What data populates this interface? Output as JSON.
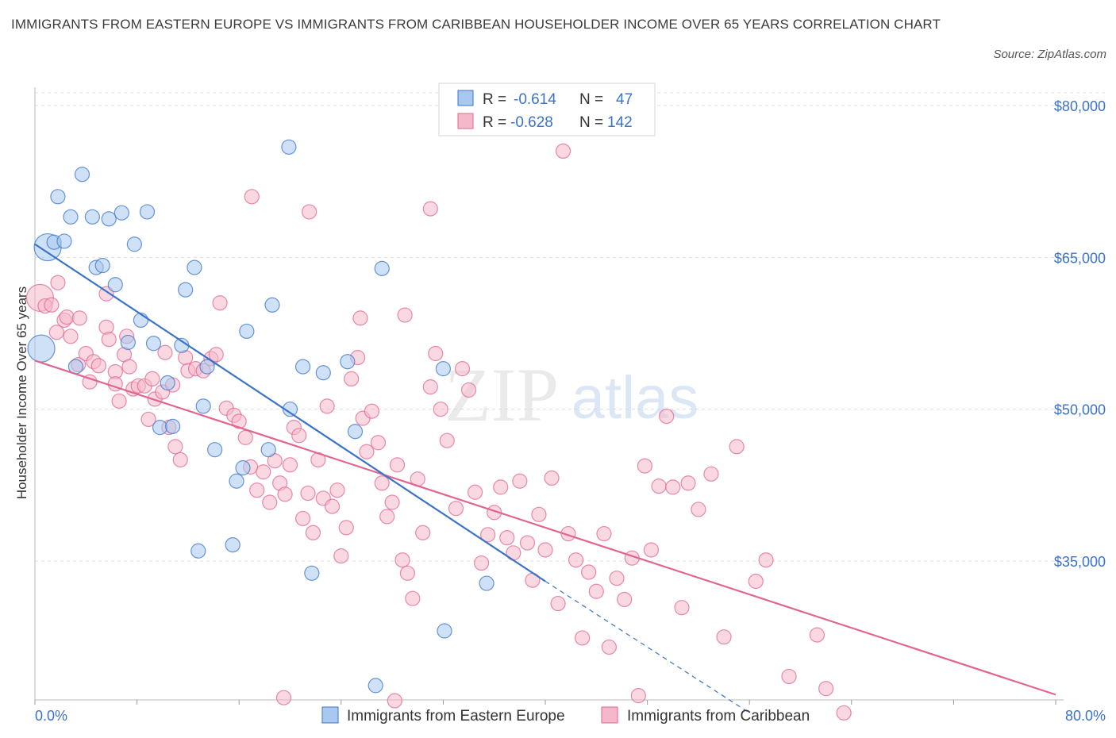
{
  "title": "IMMIGRANTS FROM EASTERN EUROPE VS IMMIGRANTS FROM CARIBBEAN HOUSEHOLDER INCOME OVER 65 YEARS CORRELATION CHART",
  "source": "Source: ZipAtlas.com",
  "watermark": {
    "zip": "ZIP",
    "atlas": "atlas"
  },
  "legend": {
    "r_label": "R =",
    "n_label": "N =",
    "entries": [
      {
        "r": "-0.614",
        "n": "47"
      },
      {
        "r": "-0.628",
        "n": "142"
      }
    ]
  },
  "bottom_legend": [
    "Immigrants from Eastern Europe",
    "Immigrants from Caribbean"
  ],
  "colors": {
    "blue": "#3b73c8",
    "blue_fill": "#a8c8ef",
    "pink": "#e06690",
    "pink_fill": "#f5b8cb"
  },
  "chart_data": {
    "type": "scatter",
    "xlabel": "",
    "ylabel": "Householder Income Over 65 years",
    "xlim": [
      0,
      80
    ],
    "ylim": [
      20000,
      83000
    ],
    "x_tick_labels": [
      "0.0%",
      "80.0%"
    ],
    "y_ticks": [
      35000,
      50000,
      65000,
      80000
    ],
    "y_tick_labels": [
      "$35,000",
      "$50,000",
      "$65,000",
      "$80,000"
    ],
    "grid": true,
    "series": [
      {
        "name": "Immigrants from Eastern Europe",
        "color": "#3b73c8",
        "trend": {
          "x": [
            0,
            40
          ],
          "y": [
            66300,
            33000
          ]
        },
        "trend_dashed": {
          "x": [
            40,
            56
          ],
          "y": [
            33000,
            20000
          ]
        },
        "points": [
          {
            "x": 0.5,
            "y": 56000,
            "s": 2
          },
          {
            "x": 1.0,
            "y": 66000,
            "s": 2
          },
          {
            "x": 1.5,
            "y": 66500,
            "s": 1
          },
          {
            "x": 2.3,
            "y": 66600,
            "s": 1
          },
          {
            "x": 1.8,
            "y": 71000,
            "s": 1
          },
          {
            "x": 2.8,
            "y": 69000,
            "s": 1
          },
          {
            "x": 3.7,
            "y": 73200,
            "s": 1
          },
          {
            "x": 4.5,
            "y": 69000,
            "s": 1
          },
          {
            "x": 5.8,
            "y": 68800,
            "s": 1
          },
          {
            "x": 6.8,
            "y": 69400,
            "s": 1
          },
          {
            "x": 8.8,
            "y": 69500,
            "s": 1
          },
          {
            "x": 7.8,
            "y": 66300,
            "s": 1
          },
          {
            "x": 4.8,
            "y": 64000,
            "s": 1
          },
          {
            "x": 5.3,
            "y": 64200,
            "s": 1
          },
          {
            "x": 6.3,
            "y": 62300,
            "s": 1
          },
          {
            "x": 8.3,
            "y": 58800,
            "s": 1
          },
          {
            "x": 7.3,
            "y": 56600,
            "s": 1
          },
          {
            "x": 9.3,
            "y": 56500,
            "s": 1
          },
          {
            "x": 11.5,
            "y": 56300,
            "s": 1
          },
          {
            "x": 11.8,
            "y": 61800,
            "s": 1
          },
          {
            "x": 12.5,
            "y": 64000,
            "s": 1
          },
          {
            "x": 3.2,
            "y": 54200,
            "s": 1
          },
          {
            "x": 10.4,
            "y": 52600,
            "s": 1
          },
          {
            "x": 13.5,
            "y": 54200,
            "s": 1
          },
          {
            "x": 16.6,
            "y": 57700,
            "s": 1
          },
          {
            "x": 18.6,
            "y": 60300,
            "s": 1
          },
          {
            "x": 19.9,
            "y": 75900,
            "s": 1
          },
          {
            "x": 21.0,
            "y": 54200,
            "s": 1
          },
          {
            "x": 22.6,
            "y": 53600,
            "s": 1
          },
          {
            "x": 24.5,
            "y": 54700,
            "s": 1
          },
          {
            "x": 27.2,
            "y": 63900,
            "s": 1
          },
          {
            "x": 32.0,
            "y": 54000,
            "s": 1
          },
          {
            "x": 13.2,
            "y": 50300,
            "s": 1
          },
          {
            "x": 9.8,
            "y": 48200,
            "s": 1
          },
          {
            "x": 10.8,
            "y": 48300,
            "s": 1
          },
          {
            "x": 14.1,
            "y": 46000,
            "s": 1
          },
          {
            "x": 20.0,
            "y": 50000,
            "s": 1
          },
          {
            "x": 25.1,
            "y": 47800,
            "s": 1
          },
          {
            "x": 18.3,
            "y": 46000,
            "s": 1
          },
          {
            "x": 16.3,
            "y": 44200,
            "s": 1
          },
          {
            "x": 15.8,
            "y": 42900,
            "s": 1
          },
          {
            "x": 12.8,
            "y": 36000,
            "s": 1
          },
          {
            "x": 15.5,
            "y": 36600,
            "s": 1
          },
          {
            "x": 21.7,
            "y": 33800,
            "s": 1
          },
          {
            "x": 35.4,
            "y": 32800,
            "s": 1
          },
          {
            "x": 32.1,
            "y": 28100,
            "s": 1
          },
          {
            "x": 26.7,
            "y": 22700,
            "s": 1
          }
        ]
      },
      {
        "name": "Immigrants from Caribbean",
        "color": "#e06690",
        "trend": {
          "x": [
            0,
            80
          ],
          "y": [
            54800,
            21800
          ]
        },
        "points": [
          {
            "x": 0.4,
            "y": 61000,
            "s": 2
          },
          {
            "x": 0.8,
            "y": 60200,
            "s": 1
          },
          {
            "x": 1.3,
            "y": 60300,
            "s": 1
          },
          {
            "x": 1.7,
            "y": 57600,
            "s": 1
          },
          {
            "x": 1.8,
            "y": 62500,
            "s": 1
          },
          {
            "x": 2.3,
            "y": 58800,
            "s": 1
          },
          {
            "x": 2.5,
            "y": 59100,
            "s": 1
          },
          {
            "x": 2.8,
            "y": 57200,
            "s": 1
          },
          {
            "x": 3.5,
            "y": 59000,
            "s": 1
          },
          {
            "x": 3.4,
            "y": 54400,
            "s": 1
          },
          {
            "x": 4.0,
            "y": 55500,
            "s": 1
          },
          {
            "x": 4.3,
            "y": 52700,
            "s": 1
          },
          {
            "x": 4.6,
            "y": 54700,
            "s": 1
          },
          {
            "x": 5.0,
            "y": 54300,
            "s": 1
          },
          {
            "x": 5.6,
            "y": 61400,
            "s": 1
          },
          {
            "x": 5.6,
            "y": 58100,
            "s": 1
          },
          {
            "x": 5.8,
            "y": 56900,
            "s": 1
          },
          {
            "x": 6.3,
            "y": 53700,
            "s": 1
          },
          {
            "x": 6.3,
            "y": 52500,
            "s": 1
          },
          {
            "x": 6.6,
            "y": 50800,
            "s": 1
          },
          {
            "x": 7.0,
            "y": 55400,
            "s": 1
          },
          {
            "x": 7.2,
            "y": 57200,
            "s": 1
          },
          {
            "x": 7.4,
            "y": 54200,
            "s": 1
          },
          {
            "x": 7.7,
            "y": 52000,
            "s": 1
          },
          {
            "x": 8.1,
            "y": 52300,
            "s": 1
          },
          {
            "x": 8.6,
            "y": 52300,
            "s": 1
          },
          {
            "x": 8.9,
            "y": 49000,
            "s": 1
          },
          {
            "x": 9.2,
            "y": 53000,
            "s": 1
          },
          {
            "x": 9.4,
            "y": 51000,
            "s": 1
          },
          {
            "x": 10.0,
            "y": 51700,
            "s": 1
          },
          {
            "x": 10.2,
            "y": 55600,
            "s": 1
          },
          {
            "x": 10.5,
            "y": 48200,
            "s": 1
          },
          {
            "x": 10.8,
            "y": 52400,
            "s": 1
          },
          {
            "x": 11.0,
            "y": 46300,
            "s": 1
          },
          {
            "x": 11.4,
            "y": 45000,
            "s": 1
          },
          {
            "x": 11.8,
            "y": 55100,
            "s": 1
          },
          {
            "x": 12.0,
            "y": 53800,
            "s": 1
          },
          {
            "x": 12.6,
            "y": 54000,
            "s": 1
          },
          {
            "x": 13.2,
            "y": 53800,
            "s": 1
          },
          {
            "x": 13.8,
            "y": 55000,
            "s": 1
          },
          {
            "x": 14.2,
            "y": 55400,
            "s": 1
          },
          {
            "x": 14.5,
            "y": 60500,
            "s": 1
          },
          {
            "x": 15.0,
            "y": 50100,
            "s": 1
          },
          {
            "x": 15.6,
            "y": 49400,
            "s": 1
          },
          {
            "x": 16.0,
            "y": 48800,
            "s": 1
          },
          {
            "x": 16.5,
            "y": 47200,
            "s": 1
          },
          {
            "x": 16.9,
            "y": 44300,
            "s": 1
          },
          {
            "x": 17.4,
            "y": 42000,
            "s": 1
          },
          {
            "x": 17.9,
            "y": 43800,
            "s": 1
          },
          {
            "x": 18.4,
            "y": 40800,
            "s": 1
          },
          {
            "x": 18.8,
            "y": 44900,
            "s": 1
          },
          {
            "x": 19.2,
            "y": 42700,
            "s": 1
          },
          {
            "x": 19.6,
            "y": 41600,
            "s": 1
          },
          {
            "x": 20.0,
            "y": 44500,
            "s": 1
          },
          {
            "x": 20.3,
            "y": 48200,
            "s": 1
          },
          {
            "x": 20.7,
            "y": 47400,
            "s": 1
          },
          {
            "x": 21.0,
            "y": 39200,
            "s": 1
          },
          {
            "x": 21.4,
            "y": 41700,
            "s": 1
          },
          {
            "x": 21.8,
            "y": 37800,
            "s": 1
          },
          {
            "x": 22.2,
            "y": 45000,
            "s": 1
          },
          {
            "x": 22.6,
            "y": 41200,
            "s": 1
          },
          {
            "x": 22.9,
            "y": 50300,
            "s": 1
          },
          {
            "x": 23.3,
            "y": 40400,
            "s": 1
          },
          {
            "x": 23.7,
            "y": 42000,
            "s": 1
          },
          {
            "x": 24.0,
            "y": 35500,
            "s": 1
          },
          {
            "x": 24.4,
            "y": 38300,
            "s": 1
          },
          {
            "x": 24.8,
            "y": 53000,
            "s": 1
          },
          {
            "x": 25.3,
            "y": 55100,
            "s": 1
          },
          {
            "x": 25.7,
            "y": 49100,
            "s": 1
          },
          {
            "x": 26.0,
            "y": 45800,
            "s": 1
          },
          {
            "x": 26.4,
            "y": 49800,
            "s": 1
          },
          {
            "x": 26.9,
            "y": 46700,
            "s": 1
          },
          {
            "x": 27.2,
            "y": 42700,
            "s": 1
          },
          {
            "x": 27.6,
            "y": 39400,
            "s": 1
          },
          {
            "x": 28.0,
            "y": 40800,
            "s": 1
          },
          {
            "x": 28.4,
            "y": 44500,
            "s": 1
          },
          {
            "x": 28.8,
            "y": 35100,
            "s": 1
          },
          {
            "x": 29.2,
            "y": 33800,
            "s": 1
          },
          {
            "x": 29.6,
            "y": 31300,
            "s": 1
          },
          {
            "x": 30.0,
            "y": 43100,
            "s": 1
          },
          {
            "x": 30.4,
            "y": 37800,
            "s": 1
          },
          {
            "x": 31.0,
            "y": 52200,
            "s": 1
          },
          {
            "x": 31.4,
            "y": 55500,
            "s": 1
          },
          {
            "x": 31.8,
            "y": 50000,
            "s": 1
          },
          {
            "x": 32.3,
            "y": 46900,
            "s": 1
          },
          {
            "x": 33.0,
            "y": 40200,
            "s": 1
          },
          {
            "x": 33.5,
            "y": 54000,
            "s": 1
          },
          {
            "x": 34.0,
            "y": 51900,
            "s": 1
          },
          {
            "x": 34.5,
            "y": 41800,
            "s": 1
          },
          {
            "x": 35.0,
            "y": 34800,
            "s": 1
          },
          {
            "x": 35.5,
            "y": 37600,
            "s": 1
          },
          {
            "x": 36.0,
            "y": 39800,
            "s": 1
          },
          {
            "x": 36.5,
            "y": 42300,
            "s": 1
          },
          {
            "x": 37.0,
            "y": 37300,
            "s": 1
          },
          {
            "x": 37.5,
            "y": 35800,
            "s": 1
          },
          {
            "x": 38.0,
            "y": 42900,
            "s": 1
          },
          {
            "x": 38.6,
            "y": 36800,
            "s": 1
          },
          {
            "x": 39.0,
            "y": 33100,
            "s": 1
          },
          {
            "x": 39.5,
            "y": 39600,
            "s": 1
          },
          {
            "x": 40.0,
            "y": 36100,
            "s": 1
          },
          {
            "x": 40.5,
            "y": 43200,
            "s": 1
          },
          {
            "x": 41.0,
            "y": 30800,
            "s": 1
          },
          {
            "x": 41.4,
            "y": 75500,
            "s": 1
          },
          {
            "x": 41.8,
            "y": 37700,
            "s": 1
          },
          {
            "x": 42.4,
            "y": 35100,
            "s": 1
          },
          {
            "x": 42.9,
            "y": 27400,
            "s": 1
          },
          {
            "x": 43.4,
            "y": 33900,
            "s": 1
          },
          {
            "x": 44.0,
            "y": 32000,
            "s": 1
          },
          {
            "x": 44.6,
            "y": 37700,
            "s": 1
          },
          {
            "x": 45.0,
            "y": 26500,
            "s": 1
          },
          {
            "x": 45.6,
            "y": 33300,
            "s": 1
          },
          {
            "x": 46.2,
            "y": 31200,
            "s": 1
          },
          {
            "x": 46.8,
            "y": 35300,
            "s": 1
          },
          {
            "x": 47.3,
            "y": 21700,
            "s": 1
          },
          {
            "x": 47.8,
            "y": 44400,
            "s": 1
          },
          {
            "x": 48.3,
            "y": 36100,
            "s": 1
          },
          {
            "x": 48.9,
            "y": 42400,
            "s": 1
          },
          {
            "x": 49.5,
            "y": 49300,
            "s": 1
          },
          {
            "x": 50.0,
            "y": 42300,
            "s": 1
          },
          {
            "x": 50.7,
            "y": 30400,
            "s": 1
          },
          {
            "x": 51.2,
            "y": 42700,
            "s": 1
          },
          {
            "x": 52.0,
            "y": 40100,
            "s": 1
          },
          {
            "x": 53.0,
            "y": 43600,
            "s": 1
          },
          {
            "x": 54.0,
            "y": 27500,
            "s": 1
          },
          {
            "x": 55.0,
            "y": 46300,
            "s": 1
          },
          {
            "x": 56.5,
            "y": 33000,
            "s": 1
          },
          {
            "x": 57.3,
            "y": 35100,
            "s": 1
          },
          {
            "x": 59.1,
            "y": 23600,
            "s": 1
          },
          {
            "x": 61.3,
            "y": 27700,
            "s": 1
          },
          {
            "x": 62.0,
            "y": 22400,
            "s": 1
          },
          {
            "x": 63.4,
            "y": 20000,
            "s": 1
          },
          {
            "x": 21.5,
            "y": 69500,
            "s": 1
          },
          {
            "x": 31.0,
            "y": 69800,
            "s": 1
          },
          {
            "x": 17.0,
            "y": 71000,
            "s": 1
          },
          {
            "x": 25.5,
            "y": 59000,
            "s": 1
          },
          {
            "x": 29.0,
            "y": 59300,
            "s": 1
          },
          {
            "x": 19.5,
            "y": 21500,
            "s": 1
          },
          {
            "x": 28.2,
            "y": 21200,
            "s": 1
          }
        ]
      }
    ]
  }
}
